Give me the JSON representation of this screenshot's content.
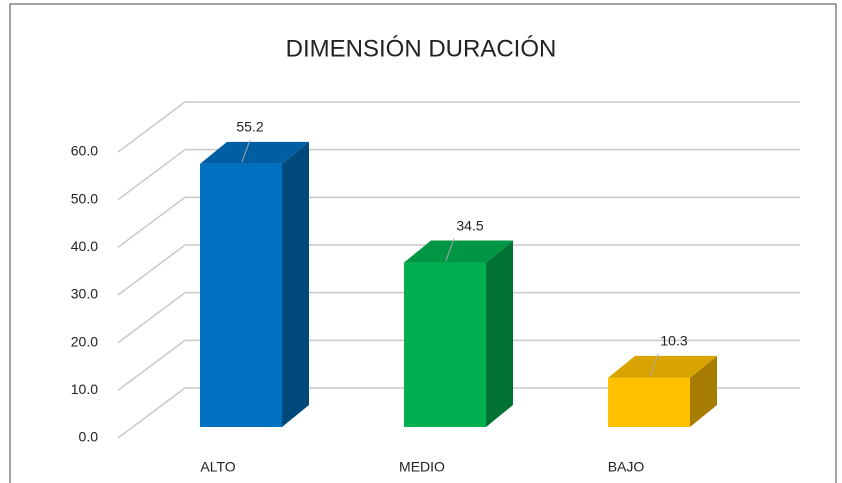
{
  "chart_data": {
    "type": "bar3d",
    "title": "DIMENSIÓN DURACIÓN",
    "categories": [
      "ALTO",
      "MEDIO",
      "BAJO"
    ],
    "values": [
      55.2,
      34.5,
      10.3
    ],
    "colors": [
      "#0070c0",
      "#00b050",
      "#ffc000"
    ],
    "ylim": [
      0,
      60
    ],
    "yticks": [
      {
        "value": 0,
        "label": "0.0"
      },
      {
        "value": 10,
        "label": "10.0"
      },
      {
        "value": 20,
        "label": "20.0"
      },
      {
        "value": 30,
        "label": "30.0"
      },
      {
        "value": 40,
        "label": "40.0"
      },
      {
        "value": 50,
        "label": "50.0"
      },
      {
        "value": 60,
        "label": "60.0"
      }
    ],
    "grid": true
  }
}
